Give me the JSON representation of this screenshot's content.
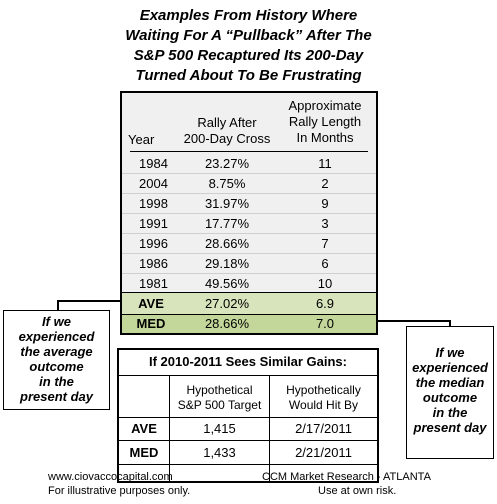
{
  "title": {
    "lines": [
      "Examples From History Where",
      "Waiting For A “Pullback” After The",
      "S&P 500 Recaptured Its 200-Day",
      "Turned About To Be Frustrating"
    ]
  },
  "history_table": {
    "headers": {
      "year": "Year",
      "rally_line1": "Rally After",
      "rally_line2": "200-Day Cross",
      "length_line1": "Approximate",
      "length_line2": "Rally Length",
      "length_line3": "In Months"
    },
    "rows": [
      {
        "year": "1984",
        "rally": "23.27%",
        "months": "11"
      },
      {
        "year": "2004",
        "rally": "8.75%",
        "months": "2"
      },
      {
        "year": "1998",
        "rally": "31.97%",
        "months": "9"
      },
      {
        "year": "1991",
        "rally": "17.77%",
        "months": "3"
      },
      {
        "year": "1996",
        "rally": "28.66%",
        "months": "7"
      },
      {
        "year": "1986",
        "rally": "29.18%",
        "months": "6"
      },
      {
        "year": "1981",
        "rally": "49.56%",
        "months": "10"
      }
    ],
    "ave": {
      "label": "AVE",
      "rally": "27.02%",
      "months": "6.9"
    },
    "med": {
      "label": "MED",
      "rally": "28.66%",
      "months": "7.0"
    }
  },
  "callout_left": {
    "lines": [
      "If we",
      "experienced",
      "the average",
      "outcome",
      "in the",
      "present day"
    ]
  },
  "callout_right": {
    "lines": [
      "If we",
      "experienced",
      "the median",
      "outcome",
      "in the",
      "present day"
    ]
  },
  "projection_table": {
    "title": "If 2010-2011 Sees Similar Gains:",
    "headers": {
      "target_line1": "Hypothetical",
      "target_line2": "S&P 500 Target",
      "hit_line1": "Hypothetically",
      "hit_line2": "Would Hit By"
    },
    "rows": [
      {
        "label": "AVE",
        "target": "1,415",
        "date": "2/17/2011"
      },
      {
        "label": "MED",
        "target": "1,433",
        "date": "2/21/2011"
      }
    ]
  },
  "footer": {
    "website": "www.ciovaccocapital.com",
    "disclaimer": "For illustrative purposes only.",
    "research": "CCM Market Research - ATLANTA",
    "risk": "Use at own risk."
  },
  "colors": {
    "ave_fill": "#d8e4bc",
    "med_fill": "#c4d79b",
    "table_fill": "#f0f0f0"
  }
}
